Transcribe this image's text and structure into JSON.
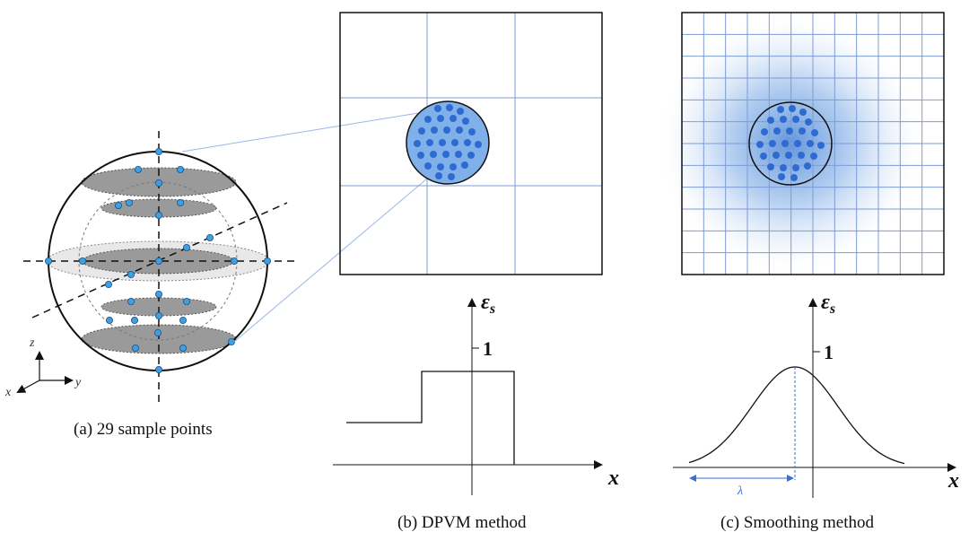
{
  "panel_a": {
    "caption": "(a) 29 sample points",
    "axes": {
      "x": "x",
      "y": "y",
      "z": "z"
    }
  },
  "panel_b": {
    "caption": "(b) DPVM method",
    "y_label": "ε",
    "y_label_sub": "s",
    "one_tick": "1",
    "x_label": "x"
  },
  "panel_c": {
    "caption": "(c) Smoothing method",
    "y_label": "ε",
    "y_label_sub": "s",
    "one_tick": "1",
    "x_label": "x",
    "lambda_label": "λ"
  },
  "colors": {
    "grid": "#7d9bd6",
    "dot": "#2e6bd0",
    "dot_light": "#3da0e0",
    "circle_fill": "#7fb0ea",
    "ellipse_dark": "#9a9a9a",
    "ellipse_light": "#e6e6e6",
    "lambda": "#3a6fd8"
  }
}
